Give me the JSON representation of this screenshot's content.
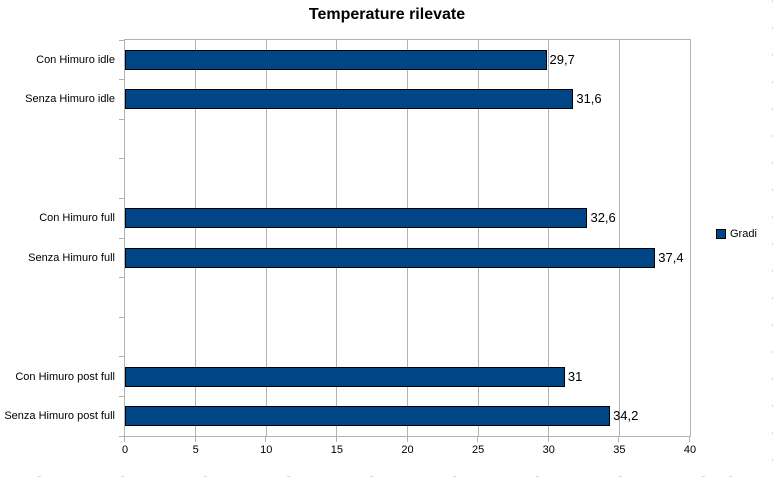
{
  "title": "Temperature rilevate",
  "legend": {
    "label": "Gradi",
    "swatch_color": "#004586"
  },
  "colors": {
    "bar_fill": "#004586",
    "bar_border": "#000000",
    "grid": "#b3b3b3",
    "text": "#000000",
    "background": "#ffffff"
  },
  "chart_data": {
    "type": "bar",
    "orientation": "horizontal",
    "title": "Temperature rilevate",
    "categories": [
      "Con Himuro idle",
      "Senza Himuro idle",
      "",
      "",
      "Con Himuro full",
      "Senza Himuro full",
      "",
      "",
      "Con Himuro post full",
      "Senza Himuro post full"
    ],
    "series": [
      {
        "name": "Gradi",
        "values": [
          29.7,
          31.6,
          null,
          null,
          32.6,
          37.4,
          null,
          null,
          31,
          34.2
        ],
        "value_labels": [
          "29,7",
          "31,6",
          "",
          "",
          "32,6",
          "37,4",
          "",
          "",
          "31",
          "34,2"
        ]
      }
    ],
    "xlabel": "",
    "ylabel": "",
    "xlim": [
      0,
      40
    ],
    "x_ticks": [
      0,
      5,
      10,
      15,
      20,
      25,
      30,
      35,
      40
    ],
    "x_tick_labels": [
      "0",
      "5",
      "10",
      "15",
      "20",
      "25",
      "30",
      "35",
      "40"
    ],
    "grid": "vertical",
    "legend_position": "right"
  }
}
